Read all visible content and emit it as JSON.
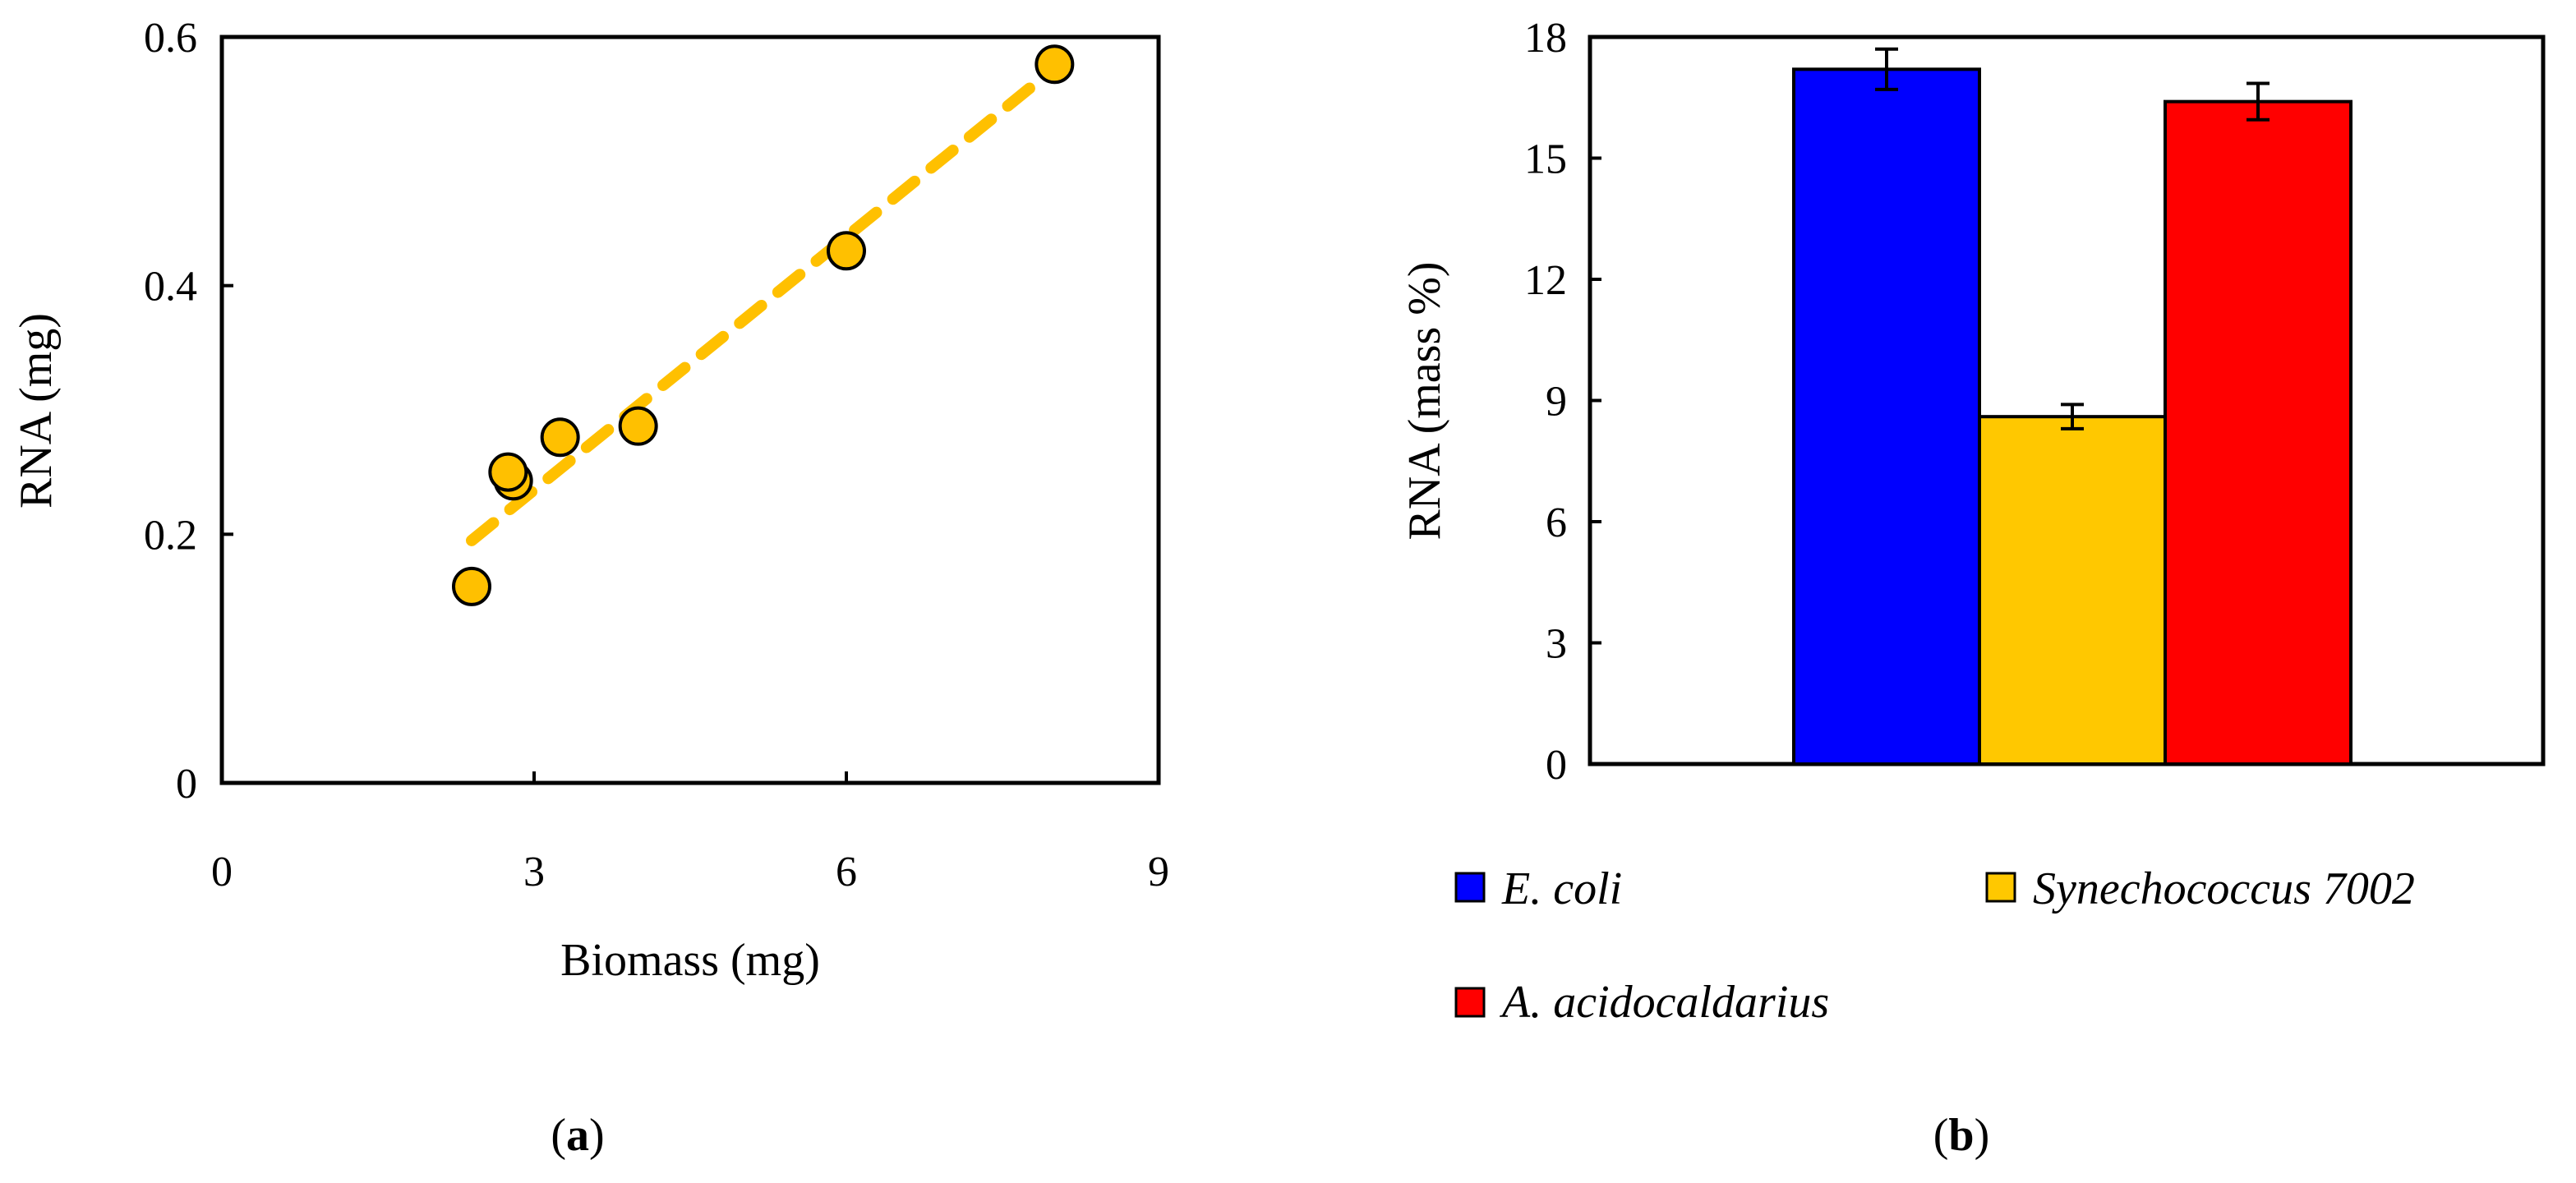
{
  "chart_data": [
    {
      "type": "scatter",
      "panel_label": "a",
      "title": "",
      "xlabel": "Biomass (mg)",
      "ylabel": "RNA (mg)",
      "xlim": [
        0,
        9
      ],
      "ylim": [
        0,
        0.6
      ],
      "xticks": [
        0,
        3,
        6,
        9
      ],
      "yticks": [
        0,
        0.2,
        0.4,
        0.6
      ],
      "xtick_labels": [
        "0",
        "3",
        "6",
        "9"
      ],
      "ytick_labels": [
        "0",
        "0.2",
        "0.4",
        "0.6"
      ],
      "points": [
        {
          "x": 2.4,
          "y": 0.158
        },
        {
          "x": 2.8,
          "y": 0.243
        },
        {
          "x": 2.75,
          "y": 0.25
        },
        {
          "x": 3.25,
          "y": 0.278
        },
        {
          "x": 4.0,
          "y": 0.287
        },
        {
          "x": 6.0,
          "y": 0.428
        },
        {
          "x": 8.0,
          "y": 0.578
        }
      ],
      "trendline": {
        "x": [
          2.4,
          8.0
        ],
        "y": [
          0.195,
          0.575
        ],
        "style": "dashed"
      },
      "marker_color": "#FFC000",
      "line_color": "#FFC000",
      "grid": false
    },
    {
      "type": "bar",
      "panel_label": "b",
      "title": "",
      "xlabel": "",
      "ylabel": "RNA (mass %)",
      "ylim": [
        0,
        18
      ],
      "yticks": [
        0,
        3,
        6,
        9,
        12,
        15,
        18
      ],
      "ytick_labels": [
        "0",
        "3",
        "6",
        "9",
        "12",
        "15",
        "18"
      ],
      "categories": [
        "E. coli",
        "Synechococcus 7002",
        "A. acidocaldarius"
      ],
      "values": [
        17.2,
        8.6,
        16.4
      ],
      "errors": [
        0.5,
        0.3,
        0.45
      ],
      "colors": [
        "#0000FF",
        "#FFC800",
        "#FF0000"
      ],
      "legend": [
        "E. coli",
        "Synechococcus 7002",
        "A. acidocaldarius"
      ],
      "legend_position": "bottom",
      "grid": false
    }
  ],
  "captions": {
    "a": {
      "open": "(",
      "letter": "a",
      "close": ")"
    },
    "b": {
      "open": "(",
      "letter": "b",
      "close": ")"
    }
  }
}
